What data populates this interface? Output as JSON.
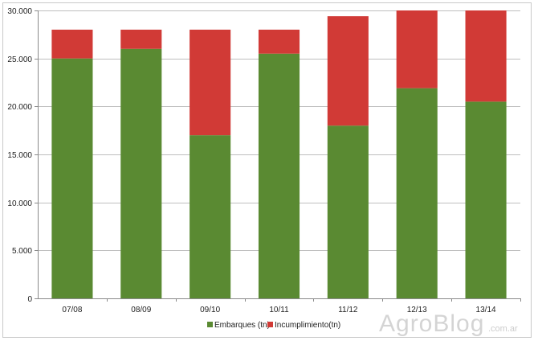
{
  "chart_data": {
    "type": "bar",
    "stacked": true,
    "categories": [
      "07/08",
      "08/09",
      "09/10",
      "10/11",
      "11/12",
      "12/13",
      "13/14"
    ],
    "series": [
      {
        "name": "Embarques (tn)",
        "color": "#5a8a32",
        "values": [
          25000,
          26000,
          17000,
          25500,
          18000,
          21900,
          20500
        ]
      },
      {
        "name": "Incumplimiento(tn)",
        "color": "#d13a36",
        "values": [
          3000,
          2000,
          11000,
          2500,
          11400,
          8100,
          9500
        ]
      }
    ],
    "yticks": [
      "0",
      "5.000",
      "10.000",
      "15.000",
      "20.000",
      "25.000",
      "30.000"
    ],
    "ylim": [
      0,
      30000
    ],
    "grid": true,
    "legend_position": "bottom"
  },
  "watermark": {
    "main": "AgroBlog",
    "sub": ".com.ar"
  }
}
